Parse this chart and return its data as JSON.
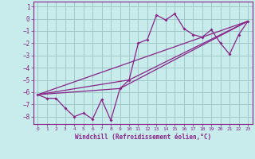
{
  "xlabel": "Windchill (Refroidissement éolien,°C)",
  "ylabel": "",
  "bg_color": "#c8ecec",
  "grid_color": "#a0c8c8",
  "line_color": "#882288",
  "xlim": [
    -0.5,
    23.5
  ],
  "ylim": [
    -8.6,
    1.4
  ],
  "xticks": [
    0,
    1,
    2,
    3,
    4,
    5,
    6,
    7,
    8,
    9,
    10,
    11,
    12,
    13,
    14,
    15,
    16,
    17,
    18,
    19,
    20,
    21,
    22,
    23
  ],
  "yticks": [
    1,
    0,
    -1,
    -2,
    -3,
    -4,
    -5,
    -6,
    -7,
    -8
  ],
  "series": [
    [
      0,
      -6.2
    ],
    [
      1,
      -6.5
    ],
    [
      2,
      -6.5
    ],
    [
      3,
      -7.3
    ],
    [
      4,
      -8.0
    ],
    [
      5,
      -7.7
    ],
    [
      6,
      -8.2
    ],
    [
      7,
      -6.6
    ],
    [
      8,
      -8.3
    ],
    [
      9,
      -5.7
    ],
    [
      10,
      -5.0
    ],
    [
      11,
      -2.0
    ],
    [
      12,
      -1.7
    ],
    [
      13,
      0.3
    ],
    [
      14,
      -0.1
    ],
    [
      15,
      0.4
    ],
    [
      16,
      -0.8
    ],
    [
      17,
      -1.3
    ],
    [
      18,
      -1.5
    ],
    [
      19,
      -0.9
    ],
    [
      20,
      -2.0
    ],
    [
      21,
      -2.9
    ],
    [
      22,
      -1.3
    ],
    [
      23,
      -0.2
    ]
  ],
  "line1": [
    [
      0,
      -6.2
    ],
    [
      23,
      -0.2
    ]
  ],
  "line2": [
    [
      0,
      -6.2
    ],
    [
      9,
      -5.7
    ],
    [
      23,
      -0.2
    ]
  ],
  "line3": [
    [
      0,
      -6.2
    ],
    [
      10,
      -5.0
    ],
    [
      23,
      -0.2
    ]
  ]
}
